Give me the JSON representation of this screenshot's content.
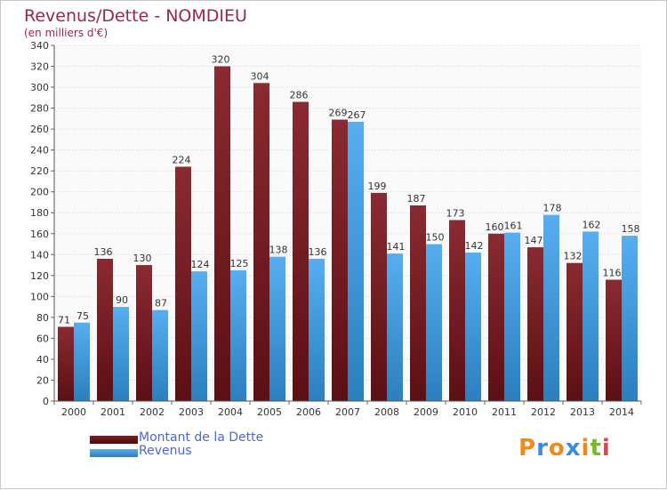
{
  "title": "Revenus/Dette - NOMDIEU",
  "subtitle": "(en milliers d'€)",
  "colors": {
    "dette": "#7a1e24",
    "revenus": "#3a97da",
    "title": "#9a2848",
    "legend_text": "#4f66d8"
  },
  "legend": [
    {
      "label": "Montant de la Dette",
      "color": "#7a1e24"
    },
    {
      "label": "Revenus",
      "color": "#3a97da"
    }
  ],
  "logo": {
    "text": "Proxiti",
    "letters": [
      {
        "ch": "P",
        "color": "#f08a1c"
      },
      {
        "ch": "r",
        "color": "#3a8fd8"
      },
      {
        "ch": "o",
        "color": "#f08a1c"
      },
      {
        "ch": "x",
        "color": "#3a8fd8"
      },
      {
        "ch": "i",
        "color": "#f08a1c"
      },
      {
        "ch": "t",
        "color": "#7ab828"
      },
      {
        "ch": "i",
        "color": "#e0444c"
      }
    ]
  },
  "chart_data": {
    "type": "bar",
    "title": "Revenus/Dette - NOMDIEU",
    "subtitle": "(en milliers d'€)",
    "xlabel": "",
    "ylabel": "",
    "categories": [
      "2000",
      "2001",
      "2002",
      "2003",
      "2004",
      "2005",
      "2006",
      "2007",
      "2008",
      "2009",
      "2010",
      "2011",
      "2012",
      "2013",
      "2014"
    ],
    "series": [
      {
        "name": "Montant de la Dette",
        "color": "#7a1e24",
        "values": [
          71,
          136,
          130,
          224,
          320,
          304,
          286,
          269,
          199,
          187,
          173,
          160,
          147,
          132,
          116
        ]
      },
      {
        "name": "Revenus",
        "color": "#3a97da",
        "values": [
          75,
          90,
          87,
          124,
          125,
          138,
          136,
          267,
          141,
          150,
          142,
          161,
          178,
          162,
          158
        ]
      }
    ],
    "ylim": [
      0,
      340
    ],
    "yticks": [
      0,
      20,
      40,
      60,
      80,
      100,
      120,
      140,
      160,
      180,
      200,
      220,
      240,
      260,
      280,
      300,
      320,
      340
    ],
    "grid": true,
    "legend_position": "bottom-left"
  }
}
